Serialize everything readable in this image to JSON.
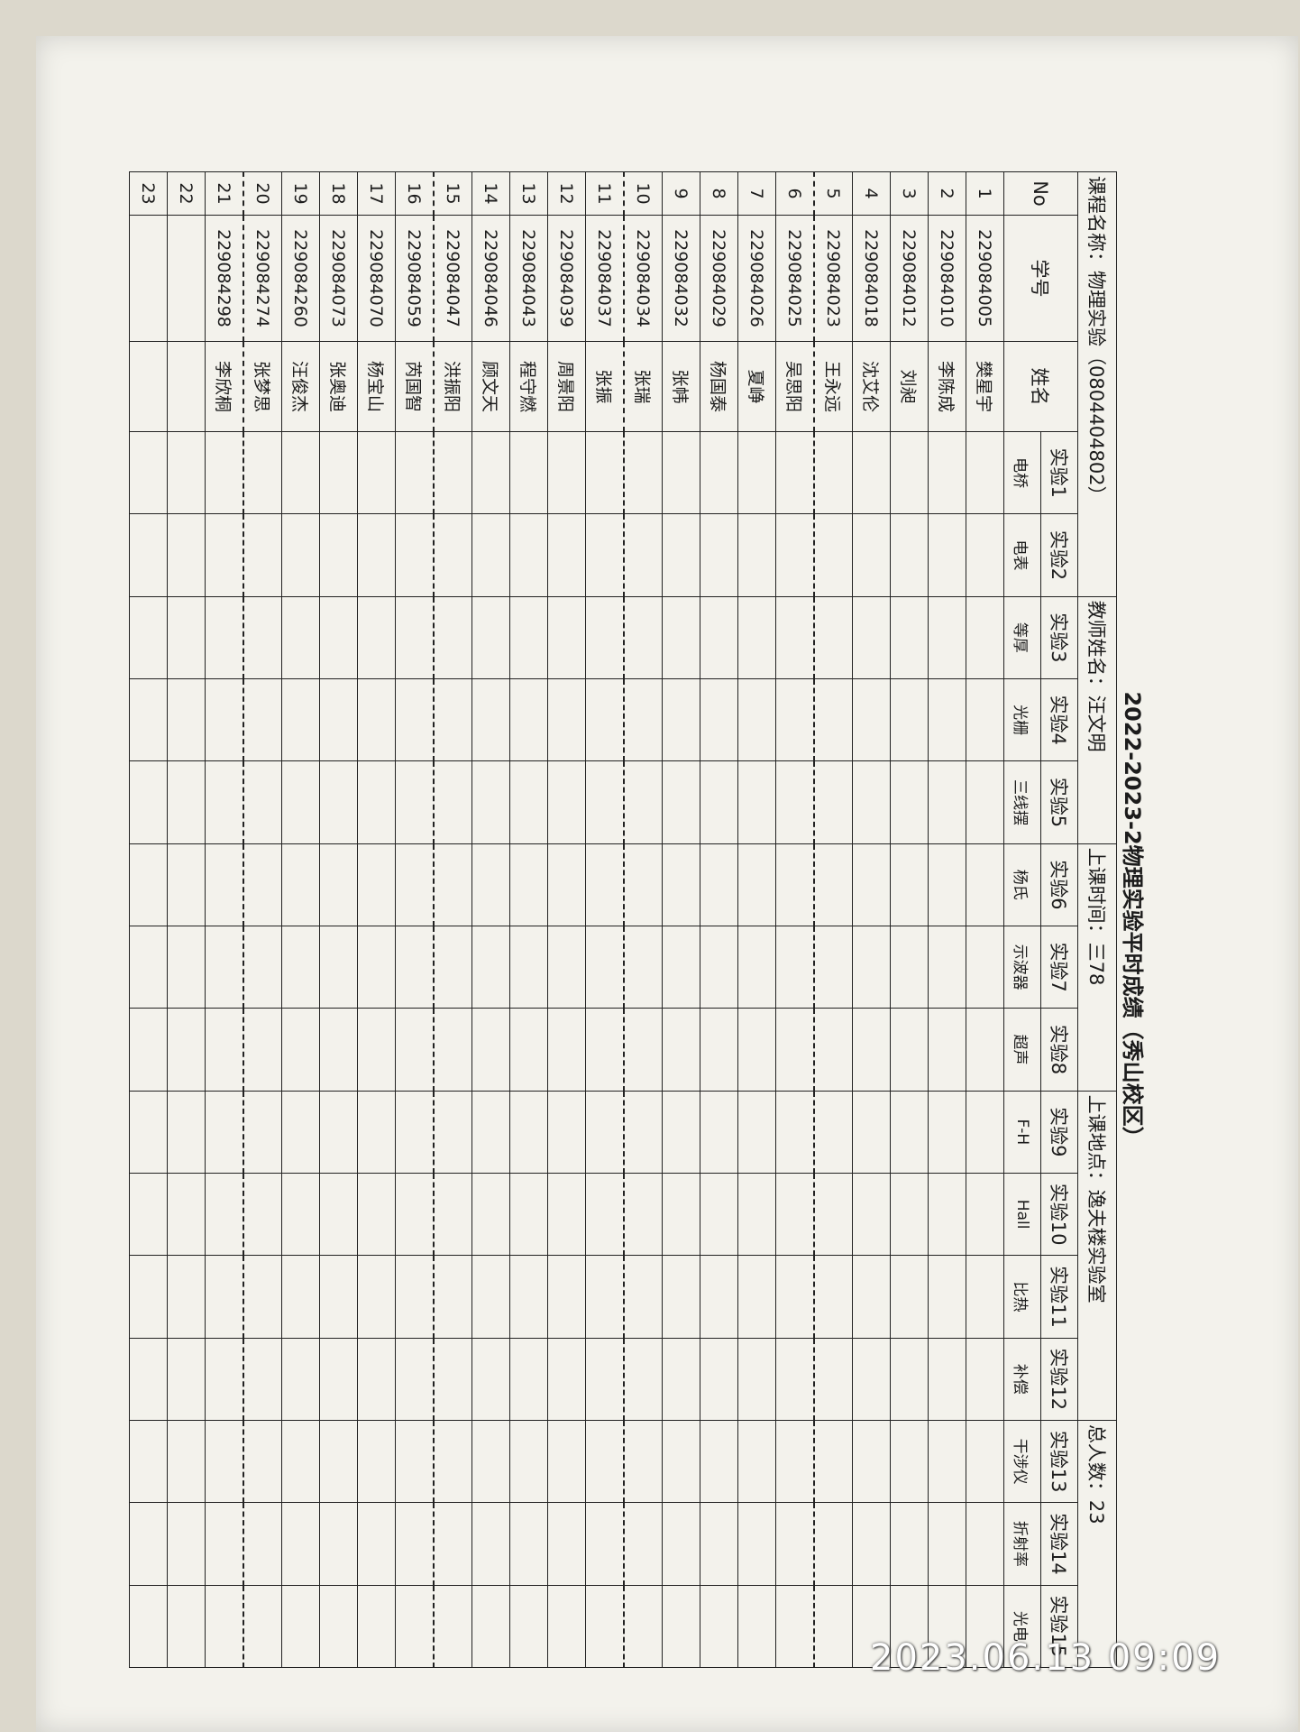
{
  "header": {
    "title": "2022-2023-2物理实验平时成绩（秀山校区）",
    "course": "课程名称：物理实验（0804404802）",
    "teacher": "教师姓名：汪文明",
    "time": "上课时间：三78",
    "place": "上课地点：逸夫楼实验室",
    "total": "总人数：23"
  },
  "table": {
    "col_no": "No",
    "col_id": "学号",
    "col_name": "姓名",
    "experiments": [
      {
        "num": "实验1",
        "name": "电桥"
      },
      {
        "num": "实验2",
        "name": "电表"
      },
      {
        "num": "实验3",
        "name": "等厚"
      },
      {
        "num": "实验4",
        "name": "光栅"
      },
      {
        "num": "实验5",
        "name": "三线摆"
      },
      {
        "num": "实验6",
        "name": "杨氏"
      },
      {
        "num": "实验7",
        "name": "示波器"
      },
      {
        "num": "实验8",
        "name": "超声"
      },
      {
        "num": "实验9",
        "name": "F-H"
      },
      {
        "num": "实验10",
        "name": "Hall"
      },
      {
        "num": "实验11",
        "name": "比热"
      },
      {
        "num": "实验12",
        "name": "补偿"
      },
      {
        "num": "实验13",
        "name": "干涉仪"
      },
      {
        "num": "实验14",
        "name": "折射率"
      },
      {
        "num": "实验15",
        "name": "光电"
      }
    ],
    "rows": [
      {
        "no": "1",
        "id": "229084005",
        "name": "樊星宇"
      },
      {
        "no": "2",
        "id": "229084010",
        "name": "李陈成"
      },
      {
        "no": "3",
        "id": "229084012",
        "name": "刘昶"
      },
      {
        "no": "4",
        "id": "229084018",
        "name": "沈艾伦"
      },
      {
        "no": "5",
        "id": "229084023",
        "name": "王永远"
      },
      {
        "no": "6",
        "id": "229084025",
        "name": "吴思阳"
      },
      {
        "no": "7",
        "id": "229084026",
        "name": "夏峥"
      },
      {
        "no": "8",
        "id": "229084029",
        "name": "杨国泰"
      },
      {
        "no": "9",
        "id": "229084032",
        "name": "张帏"
      },
      {
        "no": "10",
        "id": "229084034",
        "name": "张瑞"
      },
      {
        "no": "11",
        "id": "229084037",
        "name": "张振"
      },
      {
        "no": "12",
        "id": "229084039",
        "name": "周景阳"
      },
      {
        "no": "13",
        "id": "229084043",
        "name": "程守燃"
      },
      {
        "no": "14",
        "id": "229084046",
        "name": "顾文天"
      },
      {
        "no": "15",
        "id": "229084047",
        "name": "洪振阳"
      },
      {
        "no": "16",
        "id": "229084059",
        "name": "芮国智"
      },
      {
        "no": "17",
        "id": "229084070",
        "name": "杨宝山"
      },
      {
        "no": "18",
        "id": "229084073",
        "name": "张奥迪"
      },
      {
        "no": "19",
        "id": "229084260",
        "name": "汪俊杰"
      },
      {
        "no": "20",
        "id": "229084274",
        "name": "张梦思"
      },
      {
        "no": "21",
        "id": "229084298",
        "name": "李欣桐"
      },
      {
        "no": "22"
      },
      {
        "no": "23"
      }
    ]
  },
  "timestamp": "2023.06.13 09:09"
}
